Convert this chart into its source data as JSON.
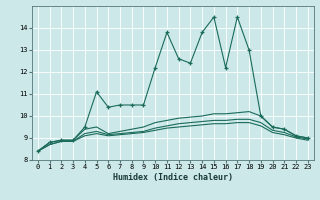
{
  "title": "",
  "xlabel": "Humidex (Indice chaleur)",
  "ylabel": "",
  "bg_color": "#cce8e8",
  "line_color": "#1a6b5a",
  "xlim": [
    -0.5,
    23.5
  ],
  "ylim": [
    8,
    15
  ],
  "yticks": [
    8,
    9,
    10,
    11,
    12,
    13,
    14
  ],
  "xticks": [
    0,
    1,
    2,
    3,
    4,
    5,
    6,
    7,
    8,
    9,
    10,
    11,
    12,
    13,
    14,
    15,
    16,
    17,
    18,
    19,
    20,
    21,
    22,
    23
  ],
  "series1": [
    8.4,
    8.8,
    8.9,
    8.9,
    9.5,
    11.1,
    10.4,
    10.5,
    10.5,
    10.5,
    12.2,
    13.8,
    12.6,
    12.4,
    13.8,
    14.5,
    12.2,
    14.5,
    13.0,
    10.0,
    9.5,
    9.4,
    9.1,
    9.0
  ],
  "series2": [
    8.4,
    8.8,
    8.9,
    8.9,
    9.4,
    9.5,
    9.2,
    9.3,
    9.4,
    9.5,
    9.7,
    9.8,
    9.9,
    9.95,
    10.0,
    10.1,
    10.1,
    10.15,
    10.2,
    10.0,
    9.5,
    9.4,
    9.1,
    9.0
  ],
  "series3": [
    8.4,
    8.7,
    8.85,
    8.85,
    9.2,
    9.3,
    9.15,
    9.2,
    9.25,
    9.3,
    9.45,
    9.55,
    9.65,
    9.7,
    9.75,
    9.8,
    9.8,
    9.85,
    9.85,
    9.7,
    9.35,
    9.25,
    9.05,
    8.95
  ],
  "series4": [
    8.4,
    8.7,
    8.85,
    8.85,
    9.1,
    9.2,
    9.1,
    9.15,
    9.2,
    9.25,
    9.35,
    9.45,
    9.5,
    9.55,
    9.6,
    9.65,
    9.65,
    9.7,
    9.7,
    9.55,
    9.25,
    9.15,
    9.0,
    8.9
  ],
  "grid_color": "#b0d0d0",
  "xlabel_fontsize": 6.0,
  "tick_fontsize": 5.0
}
